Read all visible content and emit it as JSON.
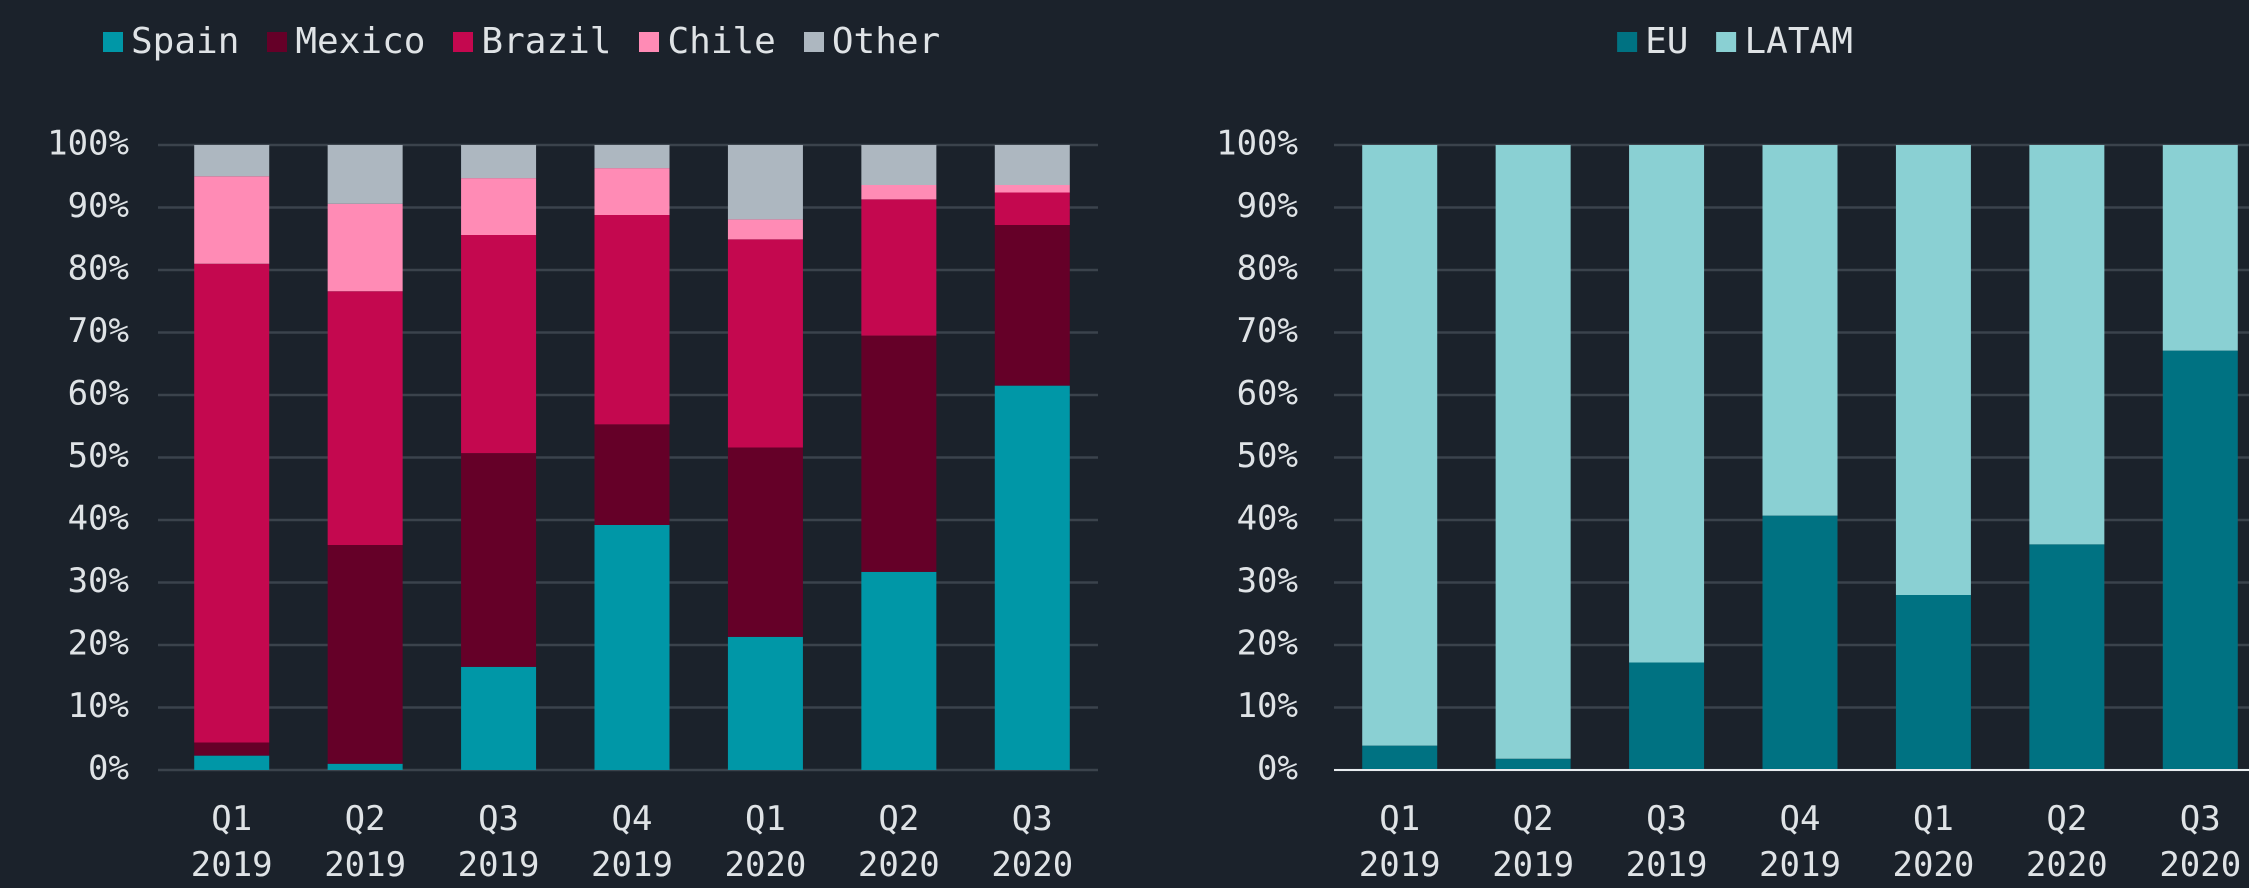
{
  "chart_data": [
    {
      "type": "stacked_bar",
      "categories": [
        "Q1 2019",
        "Q2 2019",
        "Q3 2019",
        "Q4 2019",
        "Q1 2020",
        "Q2 2020",
        "Q3 2020"
      ],
      "series": [
        {
          "name": "Spain",
          "color": "#0097a7",
          "values": [
            2.3,
            1.0,
            16.5,
            39.2,
            21.3,
            31.7,
            61.5
          ]
        },
        {
          "name": "Mexico",
          "color": "#650028",
          "values": [
            2.1,
            35.0,
            34.2,
            16.1,
            30.3,
            37.8,
            25.7
          ]
        },
        {
          "name": "Brazil",
          "color": "#c4084f",
          "values": [
            76.6,
            40.6,
            34.9,
            33.5,
            33.3,
            21.8,
            5.2
          ]
        },
        {
          "name": "Chile",
          "color": "#ff8bb5",
          "values": [
            14.0,
            14.0,
            9.1,
            7.5,
            3.2,
            2.3,
            1.2
          ]
        },
        {
          "name": "Other",
          "color": "#adb7c0",
          "values": [
            5.0,
            9.4,
            5.3,
            3.7,
            11.9,
            6.4,
            6.4
          ]
        }
      ],
      "ylim": [
        0,
        100
      ],
      "yticks": [
        {
          "value": 0,
          "label": "0%"
        },
        {
          "value": 10,
          "label": "10%"
        },
        {
          "value": 20,
          "label": "20%"
        },
        {
          "value": 30,
          "label": "30%"
        },
        {
          "value": 40,
          "label": "40%"
        },
        {
          "value": 50,
          "label": "50%"
        },
        {
          "value": 60,
          "label": "60%"
        },
        {
          "value": 70,
          "label": "70%"
        },
        {
          "value": 80,
          "label": "80%"
        },
        {
          "value": 90,
          "label": "90%"
        },
        {
          "value": 100,
          "label": "100%"
        }
      ],
      "grid": true,
      "legend": "top-left"
    },
    {
      "type": "stacked_bar",
      "categories": [
        "Q1 2019",
        "Q2 2019",
        "Q3 2019",
        "Q4 2019",
        "Q1 2020",
        "Q2 2020",
        "Q3 2020"
      ],
      "series": [
        {
          "name": "EU",
          "color": "#007282",
          "values": [
            3.9,
            1.8,
            17.2,
            40.7,
            28.0,
            36.1,
            67.1
          ]
        },
        {
          "name": "LATAM",
          "color": "#8ad0d3",
          "values": [
            96.1,
            98.2,
            82.8,
            59.3,
            72.0,
            63.9,
            32.9
          ]
        }
      ],
      "ylim": [
        0,
        100
      ],
      "yticks": [
        {
          "value": 0,
          "label": "0%"
        },
        {
          "value": 10,
          "label": "10%"
        },
        {
          "value": 20,
          "label": "20%"
        },
        {
          "value": 30,
          "label": "30%"
        },
        {
          "value": 40,
          "label": "40%"
        },
        {
          "value": 50,
          "label": "50%"
        },
        {
          "value": 60,
          "label": "60%"
        },
        {
          "value": 70,
          "label": "70%"
        },
        {
          "value": 80,
          "label": "80%"
        },
        {
          "value": 90,
          "label": "90%"
        },
        {
          "value": 100,
          "label": "100%"
        }
      ],
      "grid": true,
      "legend": "top-center"
    }
  ]
}
